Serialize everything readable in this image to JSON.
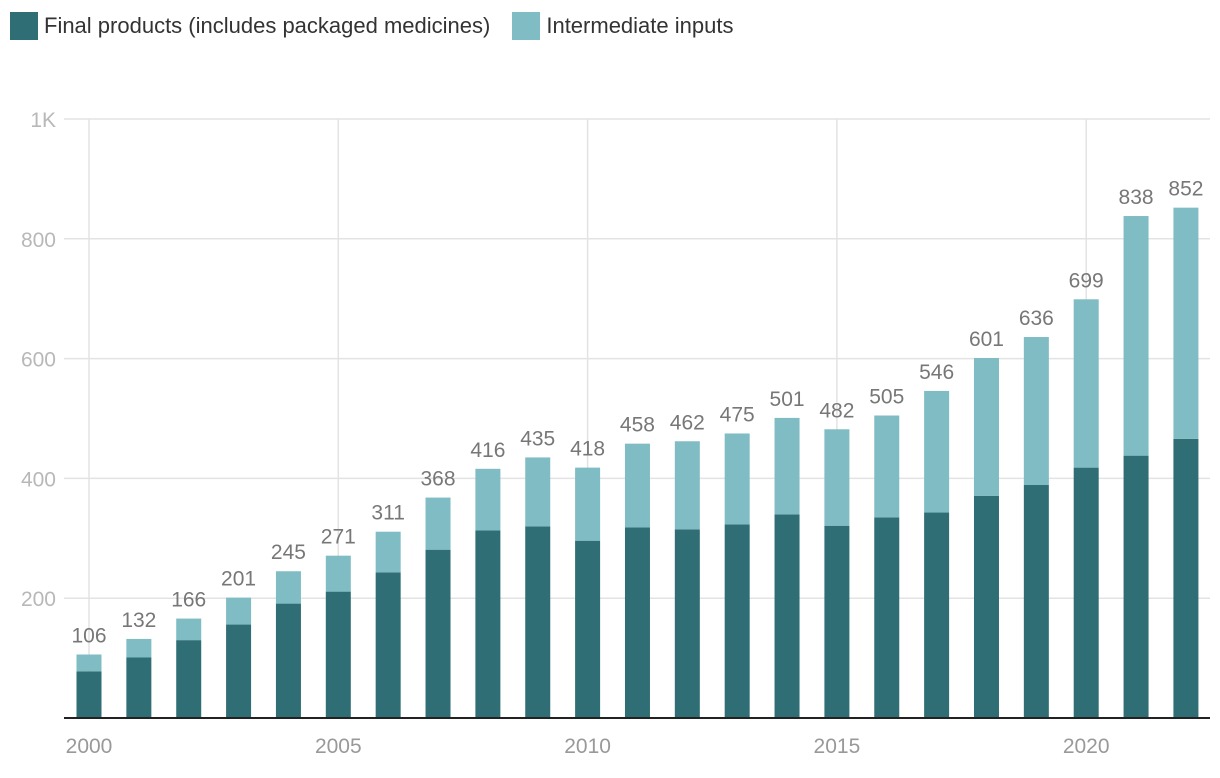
{
  "chart_data": {
    "type": "bar",
    "stacked": true,
    "x": [
      2000,
      2001,
      2002,
      2003,
      2004,
      2005,
      2006,
      2007,
      2008,
      2009,
      2010,
      2011,
      2012,
      2013,
      2014,
      2015,
      2016,
      2017,
      2018,
      2019,
      2020,
      2021,
      2022
    ],
    "x_ticks": [
      2000,
      2005,
      2010,
      2015,
      2020
    ],
    "series": [
      {
        "name": "Final products (includes packaged medicines)",
        "color": "#2f6e74",
        "values": [
          78,
          101,
          130,
          156,
          191,
          211,
          243,
          281,
          313,
          320,
          296,
          318,
          315,
          323,
          340,
          321,
          335,
          343,
          371,
          389,
          418,
          438,
          466
        ]
      },
      {
        "name": "Intermediate inputs",
        "color": "#7fbcc3",
        "values": [
          28,
          31,
          36,
          45,
          54,
          60,
          68,
          87,
          103,
          115,
          122,
          140,
          147,
          152,
          161,
          161,
          170,
          203,
          230,
          247,
          281,
          400,
          386
        ]
      }
    ],
    "totals": [
      106,
      132,
      166,
      201,
      245,
      271,
      311,
      368,
      416,
      435,
      418,
      458,
      462,
      475,
      501,
      482,
      505,
      546,
      601,
      636,
      699,
      838,
      852
    ],
    "ylim": [
      0,
      1000
    ],
    "y_ticks": [
      {
        "value": 200,
        "label": "200"
      },
      {
        "value": 400,
        "label": "400"
      },
      {
        "value": 600,
        "label": "600"
      },
      {
        "value": 800,
        "label": "800"
      },
      {
        "value": 1000,
        "label": "1K"
      }
    ],
    "grid": true,
    "legend_position": "top-left"
  }
}
